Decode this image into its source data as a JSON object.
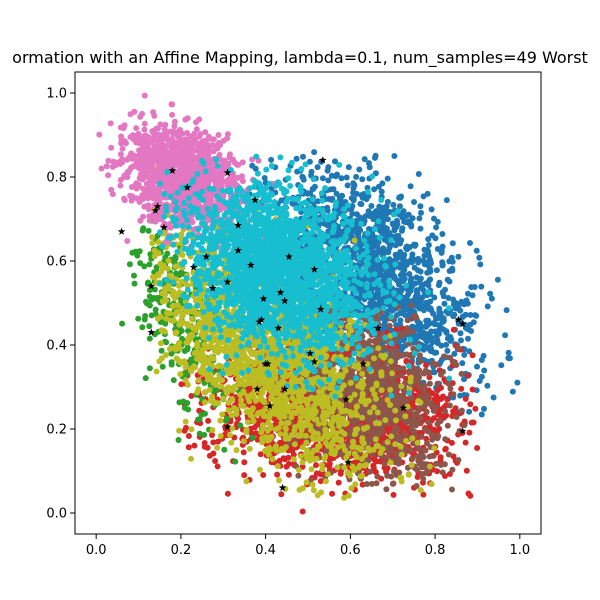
{
  "chart_data": {
    "type": "scatter",
    "title": "ormation with an Affine Mapping, lambda=0.1, num_samples=49 Worst",
    "xlabel": "",
    "ylabel": "",
    "xlim": [
      -0.05,
      1.05
    ],
    "ylim": [
      -0.05,
      1.05
    ],
    "xticks": [
      "0.0",
      "0.2",
      "0.4",
      "0.6",
      "0.8",
      "1.0"
    ],
    "yticks": [
      "0.0",
      "0.2",
      "0.4",
      "0.6",
      "0.8",
      "1.0"
    ],
    "grid": false,
    "legend": "none",
    "series": [
      {
        "color": "#1f77b4",
        "approx_points": 1500,
        "cluster": {
          "cx": 0.66,
          "cy": 0.57,
          "sx": 0.12,
          "sy": 0.13,
          "rho": -0.55,
          "xmin": 0.35,
          "xmax": 1.0,
          "ymin": 0.22,
          "ymax": 0.86
        }
      },
      {
        "color": "#d62728",
        "approx_points": 1800,
        "cluster": {
          "cx": 0.56,
          "cy": 0.25,
          "sx": 0.15,
          "sy": 0.08,
          "rho": -0.2,
          "xmin": 0.2,
          "xmax": 0.9,
          "ymin": 0.0,
          "ymax": 0.55
        }
      },
      {
        "color": "#8c564b",
        "approx_points": 1000,
        "cluster": {
          "cx": 0.63,
          "cy": 0.3,
          "sx": 0.1,
          "sy": 0.1,
          "rho": -0.3,
          "xmin": 0.35,
          "xmax": 0.87,
          "ymin": 0.05,
          "ymax": 0.5
        }
      },
      {
        "color": "#2ca02c",
        "approx_points": 250,
        "cluster": {
          "cx": 0.2,
          "cy": 0.45,
          "sx": 0.06,
          "sy": 0.12,
          "rho": -0.6,
          "xmin": 0.06,
          "xmax": 0.45,
          "ymin": 0.05,
          "ymax": 0.72
        }
      },
      {
        "color": "#bcbd22",
        "approx_points": 1800,
        "cluster": {
          "cx": 0.4,
          "cy": 0.38,
          "sx": 0.14,
          "sy": 0.14,
          "rho": -0.6,
          "xmin": 0.13,
          "xmax": 0.8,
          "ymin": 0.03,
          "ymax": 0.85
        }
      },
      {
        "color": "#e377c2",
        "approx_points": 1200,
        "cluster": {
          "cx": 0.2,
          "cy": 0.8,
          "sx": 0.07,
          "sy": 0.06,
          "rho": -0.3,
          "xmin": 0.0,
          "xmax": 0.44,
          "ymin": 0.62,
          "ymax": 1.0
        }
      },
      {
        "color": "#17becf",
        "approx_points": 2200,
        "cluster": {
          "cx": 0.42,
          "cy": 0.58,
          "sx": 0.11,
          "sy": 0.1,
          "rho": -0.3,
          "xmin": 0.15,
          "xmax": 0.92,
          "ymin": 0.18,
          "ymax": 0.86
        }
      }
    ],
    "star_markers": {
      "color": "#000000",
      "points": [
        [
          0.18,
          0.815
        ],
        [
          0.215,
          0.775
        ],
        [
          0.31,
          0.81
        ],
        [
          0.535,
          0.84
        ],
        [
          0.145,
          0.73
        ],
        [
          0.14,
          0.72
        ],
        [
          0.16,
          0.68
        ],
        [
          0.06,
          0.67
        ],
        [
          0.375,
          0.745
        ],
        [
          0.335,
          0.685
        ],
        [
          0.26,
          0.61
        ],
        [
          0.335,
          0.625
        ],
        [
          0.455,
          0.61
        ],
        [
          0.23,
          0.585
        ],
        [
          0.365,
          0.59
        ],
        [
          0.515,
          0.58
        ],
        [
          0.31,
          0.55
        ],
        [
          0.275,
          0.535
        ],
        [
          0.13,
          0.54
        ],
        [
          0.435,
          0.525
        ],
        [
          0.395,
          0.51
        ],
        [
          0.445,
          0.505
        ],
        [
          0.53,
          0.485
        ],
        [
          0.39,
          0.46
        ],
        [
          0.385,
          0.455
        ],
        [
          0.43,
          0.44
        ],
        [
          0.665,
          0.44
        ],
        [
          0.13,
          0.43
        ],
        [
          0.855,
          0.46
        ],
        [
          0.865,
          0.45
        ],
        [
          0.505,
          0.38
        ],
        [
          0.515,
          0.36
        ],
        [
          0.4,
          0.355
        ],
        [
          0.405,
          0.355
        ],
        [
          0.63,
          0.355
        ],
        [
          0.445,
          0.295
        ],
        [
          0.38,
          0.295
        ],
        [
          0.59,
          0.27
        ],
        [
          0.41,
          0.255
        ],
        [
          0.725,
          0.25
        ],
        [
          0.31,
          0.205
        ],
        [
          0.865,
          0.195
        ],
        [
          0.595,
          0.12
        ],
        [
          0.44,
          0.06
        ]
      ]
    }
  }
}
